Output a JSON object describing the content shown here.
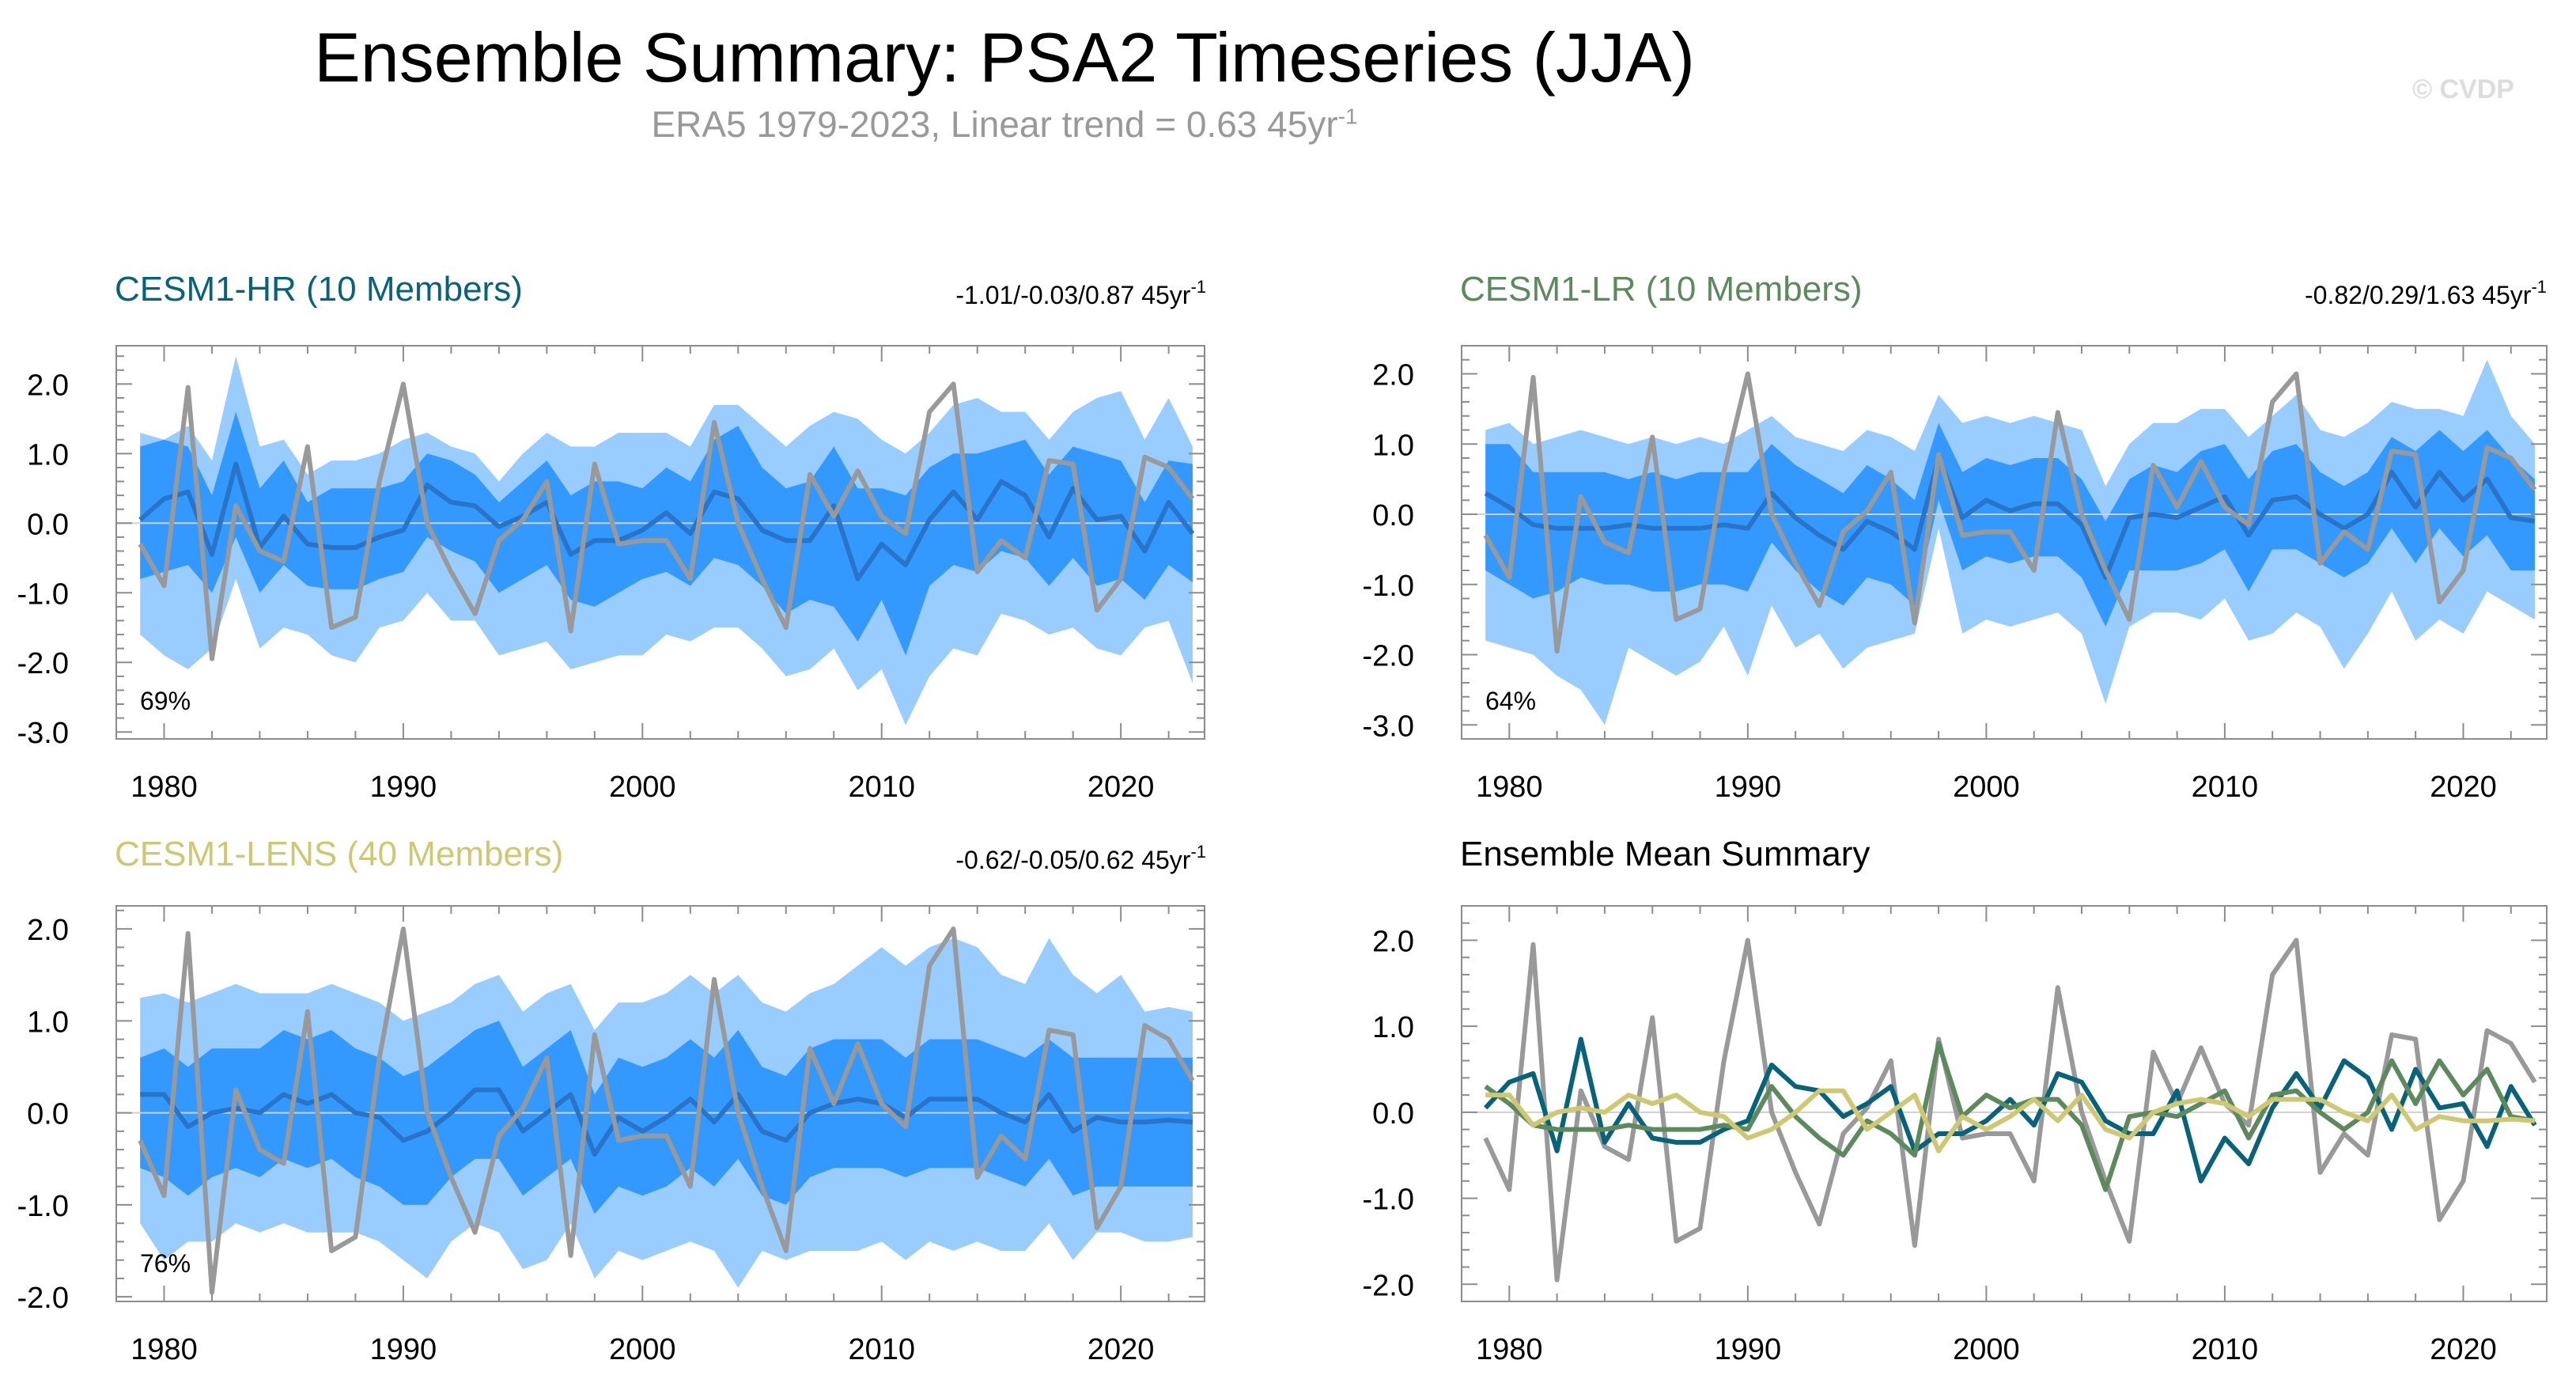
{
  "header": {
    "title": "Ensemble Summary: PSA2 Timeseries (JJA)",
    "subtitle": "ERA5 1979-2023, Linear trend = 0.63 45yr",
    "subtitle_sup": "-1",
    "watermark": "© CVDP"
  },
  "colors": {
    "outer_band": "#99ccff",
    "inner_band": "#3399ff",
    "ens_mean": "#2a74c8",
    "obs": "#999999",
    "hr": "#07627c",
    "lr": "#5c8a5c",
    "lens": "#cfc873",
    "zero_line": "#d0d0d0"
  },
  "chart_data": [
    {
      "id": "hr",
      "type": "line",
      "title": "CESM1-HR (10 Members)",
      "trend_label": "-1.01/-0.03/0.87 45yr",
      "trend_sup": "-1",
      "pct_label": "69%",
      "xlim": [
        1978,
        2023.5
      ],
      "ylim": [
        -3.1,
        2.55
      ],
      "yticks": [
        2.0,
        1.0,
        0.0,
        -1.0,
        -2.0,
        -3.0
      ],
      "ytick_labels": [
        "2.0",
        "1.0",
        "0.0",
        "-1.0",
        "-2.0",
        "-3.0"
      ],
      "xticks": [
        1980,
        1990,
        2000,
        2010,
        2020
      ],
      "xtick_labels": [
        "1980",
        "1990",
        "2000",
        "2010",
        "2020"
      ],
      "years": [
        1979,
        1980,
        1981,
        1982,
        1983,
        1984,
        1985,
        1986,
        1987,
        1988,
        1989,
        1990,
        1991,
        1992,
        1993,
        1994,
        1995,
        1996,
        1997,
        1998,
        1999,
        2000,
        2001,
        2002,
        2003,
        2004,
        2005,
        2006,
        2007,
        2008,
        2009,
        2010,
        2011,
        2012,
        2013,
        2014,
        2015,
        2016,
        2017,
        2018,
        2019,
        2020,
        2021,
        2022,
        2023
      ],
      "ens_mean": [
        0.05,
        0.35,
        0.45,
        -0.45,
        0.85,
        -0.35,
        0.1,
        -0.3,
        -0.35,
        -0.35,
        -0.2,
        -0.1,
        0.55,
        0.3,
        0.25,
        -0.05,
        0.1,
        0.3,
        -0.45,
        -0.25,
        -0.25,
        -0.1,
        0.15,
        -0.15,
        0.45,
        0.35,
        -0.1,
        -0.25,
        -0.25,
        0.25,
        -0.8,
        -0.3,
        -0.6,
        0.05,
        0.45,
        0.05,
        0.6,
        0.4,
        -0.2,
        0.5,
        0.05,
        0.1,
        -0.4,
        0.3,
        -0.15
      ],
      "inner_low": [
        -0.8,
        -0.7,
        -0.6,
        -1.0,
        -0.2,
        -1.0,
        -0.6,
        -0.9,
        -0.95,
        -0.95,
        -0.8,
        -0.7,
        -0.2,
        -0.4,
        -0.55,
        -1.0,
        -0.8,
        -0.6,
        -1.1,
        -1.2,
        -1.0,
        -0.8,
        -0.7,
        -0.9,
        -0.5,
        -0.6,
        -0.9,
        -1.3,
        -1.1,
        -1.2,
        -1.7,
        -1.1,
        -1.9,
        -0.9,
        -0.6,
        -0.7,
        -0.4,
        -0.5,
        -0.9,
        -0.5,
        -0.9,
        -0.8,
        -1.1,
        -0.6,
        -0.85
      ],
      "inner_high": [
        1.1,
        1.2,
        1.1,
        0.4,
        1.6,
        0.5,
        0.9,
        0.3,
        0.5,
        0.5,
        0.5,
        0.6,
        1.0,
        0.9,
        0.7,
        0.3,
        0.6,
        0.9,
        0.4,
        0.6,
        0.6,
        0.5,
        0.8,
        0.6,
        1.2,
        1.4,
        0.8,
        0.5,
        0.6,
        1.1,
        0.5,
        0.5,
        0.4,
        0.8,
        1.0,
        1.0,
        1.1,
        1.2,
        0.7,
        1.1,
        1.0,
        0.9,
        0.3,
        0.9,
        0.85
      ],
      "outer_low": [
        -1.6,
        -1.9,
        -2.1,
        -1.8,
        -0.8,
        -1.8,
        -1.5,
        -1.6,
        -1.9,
        -2.0,
        -1.5,
        -1.4,
        -1.0,
        -1.4,
        -1.4,
        -1.9,
        -1.8,
        -1.7,
        -2.1,
        -2.0,
        -1.9,
        -1.9,
        -1.6,
        -1.7,
        -1.5,
        -1.5,
        -1.8,
        -2.2,
        -2.1,
        -1.8,
        -2.4,
        -2.1,
        -2.9,
        -2.2,
        -1.8,
        -1.9,
        -1.3,
        -1.4,
        -1.6,
        -1.5,
        -1.8,
        -1.9,
        -1.5,
        -1.4,
        -2.3
      ],
      "outer_high": [
        1.3,
        1.2,
        1.4,
        0.9,
        2.4,
        1.1,
        1.2,
        0.7,
        0.9,
        0.9,
        1.0,
        1.2,
        1.3,
        1.1,
        1.0,
        0.6,
        1.0,
        1.3,
        1.1,
        1.1,
        1.3,
        1.3,
        1.3,
        1.1,
        1.7,
        1.7,
        1.4,
        1.1,
        1.4,
        1.6,
        1.5,
        1.2,
        1.0,
        1.3,
        1.7,
        1.8,
        1.6,
        1.6,
        1.2,
        1.6,
        1.8,
        1.9,
        1.2,
        1.8,
        1.1
      ],
      "obs_series": "era5"
    },
    {
      "id": "lr",
      "type": "line",
      "title": "CESM1-LR (10 Members)",
      "trend_label": "-0.82/0.29/1.63 45yr",
      "trend_sup": "-1",
      "pct_label": "64%",
      "xlim": [
        1978,
        2023.5
      ],
      "ylim": [
        -3.2,
        2.4
      ],
      "yticks": [
        2.0,
        1.0,
        0.0,
        -1.0,
        -2.0,
        -3.0
      ],
      "ytick_labels": [
        "2.0",
        "1.0",
        "0.0",
        "-1.0",
        "-2.0",
        "-3.0"
      ],
      "xticks": [
        1980,
        1990,
        2000,
        2010,
        2020
      ],
      "xtick_labels": [
        "1980",
        "1990",
        "2000",
        "2010",
        "2020"
      ],
      "years": [
        1979,
        1980,
        1981,
        1982,
        1983,
        1984,
        1985,
        1986,
        1987,
        1988,
        1989,
        1990,
        1991,
        1992,
        1993,
        1994,
        1995,
        1996,
        1997,
        1998,
        1999,
        2000,
        2001,
        2002,
        2003,
        2004,
        2005,
        2006,
        2007,
        2008,
        2009,
        2010,
        2011,
        2012,
        2013,
        2014,
        2015,
        2016,
        2017,
        2018,
        2019,
        2020,
        2021,
        2022,
        2023
      ],
      "ens_mean": [
        0.3,
        0.1,
        -0.15,
        -0.2,
        -0.2,
        -0.2,
        -0.15,
        -0.2,
        -0.2,
        -0.2,
        -0.15,
        -0.2,
        0.3,
        -0.05,
        -0.3,
        -0.5,
        -0.1,
        -0.25,
        -0.5,
        0.8,
        -0.05,
        0.2,
        0.05,
        0.15,
        0.15,
        -0.15,
        -0.9,
        -0.05,
        0.0,
        -0.05,
        0.1,
        0.25,
        -0.3,
        0.2,
        0.25,
        0.0,
        -0.2,
        0.0,
        0.6,
        0.1,
        0.6,
        0.2,
        0.5,
        -0.05,
        -0.1
      ],
      "inner_low": [
        -0.8,
        -1.0,
        -1.2,
        -1.1,
        -0.9,
        -1.0,
        -1.0,
        -1.1,
        -1.1,
        -1.0,
        -1.0,
        -1.1,
        -0.4,
        -0.8,
        -1.1,
        -1.3,
        -0.9,
        -1.0,
        -1.3,
        0.2,
        -0.8,
        -0.6,
        -0.7,
        -0.6,
        -0.6,
        -0.9,
        -1.6,
        -0.8,
        -0.8,
        -0.8,
        -0.7,
        -0.5,
        -1.1,
        -0.5,
        -0.5,
        -0.7,
        -0.9,
        -0.7,
        -0.2,
        -0.7,
        -0.2,
        -0.6,
        -0.3,
        -0.8,
        -0.8
      ],
      "inner_high": [
        1.0,
        1.0,
        0.6,
        0.6,
        0.6,
        0.6,
        0.5,
        0.6,
        0.5,
        0.6,
        0.6,
        0.6,
        1.0,
        0.7,
        0.5,
        0.3,
        0.7,
        0.5,
        0.2,
        1.3,
        0.6,
        0.8,
        0.7,
        0.8,
        0.8,
        0.5,
        -0.1,
        0.5,
        0.7,
        0.6,
        0.9,
        1.0,
        0.5,
        0.9,
        1.0,
        0.6,
        0.4,
        0.6,
        1.1,
        0.9,
        1.2,
        0.9,
        1.2,
        0.8,
        0.5
      ],
      "outer_low": [
        -1.8,
        -1.9,
        -2.0,
        -2.3,
        -2.5,
        -3.0,
        -1.9,
        -2.1,
        -2.3,
        -2.1,
        -1.6,
        -2.3,
        -1.3,
        -1.9,
        -1.7,
        -2.2,
        -1.9,
        -1.8,
        -1.7,
        -0.2,
        -1.7,
        -1.5,
        -1.6,
        -1.5,
        -1.4,
        -1.7,
        -2.7,
        -1.6,
        -1.4,
        -1.4,
        -1.5,
        -1.2,
        -1.8,
        -1.7,
        -1.4,
        -1.6,
        -2.2,
        -1.7,
        -1.1,
        -1.8,
        -1.5,
        -1.7,
        -1.1,
        -1.3,
        -1.5
      ],
      "outer_high": [
        1.2,
        1.3,
        1.0,
        1.1,
        1.2,
        1.1,
        1.0,
        1.1,
        1.0,
        1.1,
        1.0,
        1.2,
        1.4,
        1.1,
        1.0,
        0.9,
        1.2,
        1.1,
        0.9,
        1.7,
        1.3,
        1.4,
        1.3,
        1.4,
        1.3,
        1.2,
        0.4,
        1.0,
        1.3,
        1.3,
        1.5,
        1.5,
        1.1,
        1.4,
        1.7,
        1.2,
        1.1,
        1.3,
        1.6,
        1.5,
        1.5,
        1.4,
        2.2,
        1.4,
        1.0
      ],
      "obs_series": "era5"
    },
    {
      "id": "lens",
      "type": "line",
      "title": "CESM1-LENS (40 Members)",
      "trend_label": "-0.62/-0.05/0.62 45yr",
      "trend_sup": "-1",
      "pct_label": "76%",
      "xlim": [
        1978,
        2023.5
      ],
      "ylim": [
        -2.05,
        2.25
      ],
      "yticks": [
        2.0,
        1.0,
        0.0,
        -1.0,
        -2.0
      ],
      "ytick_labels": [
        "2.0",
        "1.0",
        "0.0",
        "-1.0",
        "-2.0"
      ],
      "xticks": [
        1980,
        1990,
        2000,
        2010,
        2020
      ],
      "xtick_labels": [
        "1980",
        "1990",
        "2000",
        "2010",
        "2020"
      ],
      "years": [
        1979,
        1980,
        1981,
        1982,
        1983,
        1984,
        1985,
        1986,
        1987,
        1988,
        1989,
        1990,
        1991,
        1992,
        1993,
        1994,
        1995,
        1996,
        1997,
        1998,
        1999,
        2000,
        2001,
        2002,
        2003,
        2004,
        2005,
        2006,
        2007,
        2008,
        2009,
        2010,
        2011,
        2012,
        2013,
        2014,
        2015,
        2016,
        2017,
        2018,
        2019,
        2020,
        2021,
        2022,
        2023
      ],
      "ens_mean": [
        0.2,
        0.2,
        -0.15,
        0.0,
        0.05,
        0.0,
        0.2,
        0.1,
        0.2,
        0.0,
        -0.05,
        -0.3,
        -0.2,
        0.0,
        0.25,
        0.25,
        -0.2,
        0.0,
        0.2,
        -0.45,
        -0.05,
        -0.2,
        -0.05,
        0.15,
        -0.1,
        0.2,
        -0.2,
        -0.3,
        0.0,
        0.1,
        0.15,
        0.1,
        -0.05,
        0.15,
        0.15,
        0.15,
        0.0,
        -0.1,
        0.2,
        -0.2,
        -0.05,
        -0.1,
        -0.1,
        -0.08,
        -0.1
      ],
      "inner_low": [
        -0.6,
        -0.7,
        -0.9,
        -0.7,
        -0.6,
        -0.7,
        -0.5,
        -0.6,
        -0.5,
        -0.7,
        -0.8,
        -1.0,
        -1.0,
        -0.7,
        -0.5,
        -0.5,
        -0.9,
        -0.7,
        -0.5,
        -1.1,
        -0.8,
        -0.9,
        -0.8,
        -0.6,
        -0.8,
        -0.5,
        -0.9,
        -1.0,
        -0.7,
        -0.6,
        -0.6,
        -0.6,
        -0.7,
        -0.6,
        -0.6,
        -0.6,
        -0.7,
        -0.8,
        -0.5,
        -0.9,
        -0.8,
        -0.8,
        -0.8,
        -0.8,
        -0.8
      ],
      "inner_high": [
        0.6,
        0.7,
        0.5,
        0.7,
        0.7,
        0.7,
        0.9,
        0.8,
        0.9,
        0.7,
        0.6,
        0.4,
        0.5,
        0.7,
        0.9,
        1.0,
        0.5,
        0.7,
        0.9,
        0.2,
        0.6,
        0.5,
        0.6,
        0.8,
        0.6,
        0.9,
        0.5,
        0.4,
        0.7,
        0.8,
        0.8,
        0.8,
        0.6,
        0.8,
        0.8,
        0.8,
        0.7,
        0.6,
        0.8,
        0.6,
        0.6,
        0.6,
        0.6,
        0.6,
        0.6
      ],
      "outer_low": [
        -1.2,
        -1.6,
        -1.4,
        -1.4,
        -1.2,
        -1.3,
        -1.2,
        -1.3,
        -1.3,
        -1.3,
        -1.4,
        -1.6,
        -1.8,
        -1.4,
        -1.2,
        -1.3,
        -1.7,
        -1.6,
        -1.2,
        -1.8,
        -1.5,
        -1.6,
        -1.5,
        -1.4,
        -1.5,
        -1.9,
        -1.5,
        -1.6,
        -1.5,
        -1.5,
        -1.5,
        -1.4,
        -1.6,
        -1.4,
        -1.5,
        -1.4,
        -1.5,
        -1.5,
        -1.2,
        -1.6,
        -1.3,
        -1.3,
        -1.4,
        -1.4,
        -1.35
      ],
      "outer_high": [
        1.25,
        1.3,
        1.2,
        1.3,
        1.4,
        1.3,
        1.3,
        1.3,
        1.4,
        1.3,
        1.2,
        1.0,
        1.1,
        1.2,
        1.4,
        1.5,
        1.1,
        1.3,
        1.4,
        0.9,
        1.2,
        1.2,
        1.3,
        1.5,
        1.3,
        1.5,
        1.2,
        1.1,
        1.3,
        1.4,
        1.6,
        1.8,
        1.6,
        1.8,
        1.9,
        1.8,
        1.5,
        1.4,
        1.9,
        1.5,
        1.3,
        1.5,
        1.1,
        1.15,
        1.1
      ],
      "obs_series": "era5"
    },
    {
      "id": "summary",
      "type": "line",
      "title": "Ensemble Mean Summary",
      "xlim": [
        1978,
        2023.5
      ],
      "ylim": [
        -2.2,
        2.4
      ],
      "yticks": [
        2.0,
        1.0,
        0.0,
        -1.0,
        -2.0
      ],
      "ytick_labels": [
        "2.0",
        "1.0",
        "0.0",
        "-1.0",
        "-2.0"
      ],
      "xticks": [
        1980,
        1990,
        2000,
        2010,
        2020
      ],
      "xtick_labels": [
        "1980",
        "1990",
        "2000",
        "2010",
        "2020"
      ],
      "years": [
        1979,
        1980,
        1981,
        1982,
        1983,
        1984,
        1985,
        1986,
        1987,
        1988,
        1989,
        1990,
        1991,
        1992,
        1993,
        1994,
        1995,
        1996,
        1997,
        1998,
        1999,
        2000,
        2001,
        2002,
        2003,
        2004,
        2005,
        2006,
        2007,
        2008,
        2009,
        2010,
        2011,
        2012,
        2013,
        2014,
        2015,
        2016,
        2017,
        2018,
        2019,
        2020,
        2021,
        2022,
        2023
      ],
      "series": [
        {
          "name": "ERA5",
          "color_key": "obs",
          "ref": "era5"
        },
        {
          "name": "CESM1-HR",
          "color_key": "hr",
          "ref": "hr"
        },
        {
          "name": "CESM1-LR",
          "color_key": "lr",
          "ref": "lr"
        },
        {
          "name": "CESM1-LENS",
          "color_key": "lens",
          "ref": "lens"
        }
      ]
    }
  ],
  "observations": {
    "name": "ERA5",
    "years": [
      1979,
      1980,
      1981,
      1982,
      1983,
      1984,
      1985,
      1986,
      1987,
      1988,
      1989,
      1990,
      1991,
      1992,
      1993,
      1994,
      1995,
      1996,
      1997,
      1998,
      1999,
      2000,
      2001,
      2002,
      2003,
      2004,
      2005,
      2006,
      2007,
      2008,
      2009,
      2010,
      2011,
      2012,
      2013,
      2014,
      2015,
      2016,
      2017,
      2018,
      2019,
      2020,
      2021,
      2022,
      2023
    ],
    "values": [
      -0.3,
      -0.9,
      1.95,
      -1.95,
      0.25,
      -0.4,
      -0.55,
      1.1,
      -1.5,
      -1.35,
      0.6,
      2.0,
      0.0,
      -0.7,
      -1.3,
      -0.25,
      0.05,
      0.6,
      -1.55,
      0.85,
      -0.3,
      -0.25,
      -0.25,
      -0.8,
      1.45,
      0.0,
      -0.8,
      -1.5,
      0.7,
      0.1,
      0.75,
      0.1,
      -0.15,
      1.6,
      2.0,
      -0.7,
      -0.25,
      -0.5,
      0.9,
      0.85,
      -1.25,
      -0.8,
      0.95,
      0.8,
      0.35
    ]
  }
}
